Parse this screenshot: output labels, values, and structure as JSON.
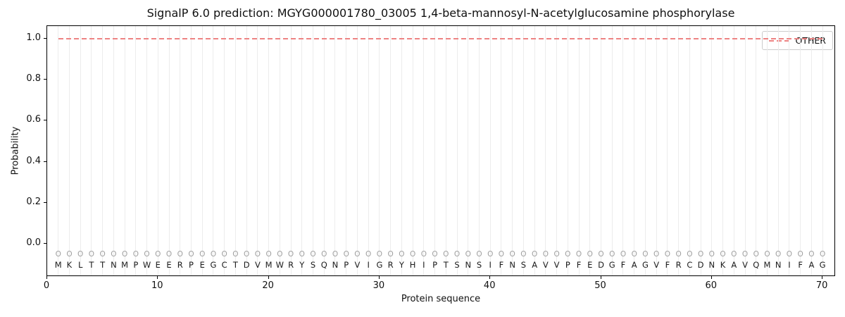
{
  "title": "SignalP 6.0 prediction: MGYG000001780_03005 1,4-beta-mannosyl-N-acetylglucosamine phosphorylase",
  "colors": {
    "other_line": "#ee8383",
    "grid": "#ececec",
    "residue_marker": "#a0a0a0",
    "text": "#111111",
    "spine": "#000000",
    "legend_border": "#cccccc"
  },
  "legend": {
    "entries": [
      {
        "label": "OTHER",
        "line_style": "dashed",
        "color": "#ee8383"
      }
    ]
  },
  "chart_data": {
    "type": "line",
    "title": "SignalP 6.0 prediction: MGYG000001780_03005 1,4-beta-mannosyl-N-acetylglucosamine phosphorylase",
    "xlabel": "Protein sequence",
    "ylabel": "Probability",
    "xticks": [
      0,
      10,
      20,
      30,
      40,
      50,
      60,
      70
    ],
    "ytick_labels": [
      "0.0",
      "0.2",
      "0.4",
      "0.6",
      "0.8",
      "1.0"
    ],
    "ytick_values": [
      0.0,
      0.2,
      0.4,
      0.6,
      0.8,
      1.0
    ],
    "xlim": [
      0,
      71.2
    ],
    "ylim": [
      -0.16,
      1.06
    ],
    "grid": "vertical-per-residue",
    "legend_position": "upper right",
    "sequence": "MKLTTNMPWEERPEGCTDVMWRYSQNPVIGRYHIPTSNSIFNSAVVPFEDGFAGVFRCDNKAVQMNIFAG",
    "per_residue_region_labels": "OOOOOOOOOOOOOOOOOOOOOOOOOOOOOOOOOOOOOOOOOOOOOOOOOOOOOOOOOOOOOOOOOOOOOO",
    "region_label_row_y": -0.05,
    "series": [
      {
        "name": "OTHER",
        "style": "dashed",
        "color": "#ee8383",
        "x_start": 1,
        "x_end": 70,
        "constant_value": 1.0
      }
    ]
  }
}
